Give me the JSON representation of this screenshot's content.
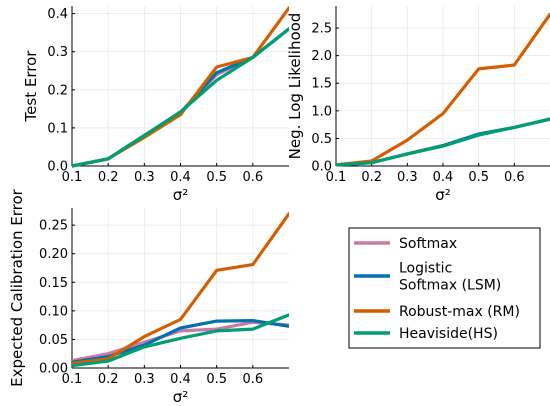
{
  "chart_data": [
    {
      "type": "line",
      "xlabel": "σ²",
      "ylabel": "Test Error",
      "xlim": [
        0.1,
        0.7
      ],
      "ylim": [
        0.0,
        0.42
      ],
      "xticks": [
        0.1,
        0.2,
        0.3,
        0.4,
        0.5,
        0.6
      ],
      "xtick_labels": [
        "0.1",
        "0.2",
        "0.3",
        "0.4",
        "0.5",
        "0.6"
      ],
      "yticks": [
        0.0,
        0.1,
        0.2,
        0.3,
        0.4
      ],
      "ytick_labels": [
        "0.0",
        "0.1",
        "0.2",
        "0.3",
        "0.4"
      ],
      "grid": true,
      "x": [
        0.1,
        0.2,
        0.3,
        0.4,
        0.5,
        0.6,
        0.7
      ],
      "series": [
        {
          "name": "Softmax",
          "color": "#CC79A7",
          "values": [
            0.0,
            0.019,
            0.08,
            0.14,
            0.24,
            0.285,
            0.36
          ]
        },
        {
          "name": "Logistic Softmax (LSM)",
          "color": "#0072B2",
          "values": [
            0.0,
            0.019,
            0.08,
            0.14,
            0.245,
            0.285,
            0.36
          ]
        },
        {
          "name": "Robust-max (RM)",
          "color": "#D55E00",
          "values": [
            0.0,
            0.019,
            0.075,
            0.135,
            0.26,
            0.285,
            0.415
          ]
        },
        {
          "name": "Heaviside(HS)",
          "color": "#009E73",
          "values": [
            0.0,
            0.019,
            0.08,
            0.142,
            0.225,
            0.285,
            0.36
          ]
        }
      ]
    },
    {
      "type": "line",
      "xlabel": "σ²",
      "ylabel": "Neg. Log Likelihood",
      "xlim": [
        0.1,
        0.7
      ],
      "ylim": [
        0.0,
        2.9
      ],
      "xticks": [
        0.1,
        0.2,
        0.3,
        0.4,
        0.5,
        0.6
      ],
      "xtick_labels": [
        "0.1",
        "0.2",
        "0.3",
        "0.4",
        "0.5",
        "0.6"
      ],
      "yticks": [
        0.0,
        0.5,
        1.0,
        1.5,
        2.0,
        2.5
      ],
      "ytick_labels": [
        "0.0",
        "0.5",
        "1.0",
        "1.5",
        "2.0",
        "2.5"
      ],
      "grid": true,
      "x": [
        0.1,
        0.2,
        0.3,
        0.4,
        0.5,
        0.6,
        0.7
      ],
      "series": [
        {
          "name": "Softmax",
          "color": "#CC79A7",
          "values": [
            0.02,
            0.06,
            0.22,
            0.37,
            0.57,
            0.7,
            0.85
          ]
        },
        {
          "name": "Logistic Softmax (LSM)",
          "color": "#0072B2",
          "values": [
            0.02,
            0.06,
            0.22,
            0.37,
            0.58,
            0.7,
            0.85
          ]
        },
        {
          "name": "Robust-max (RM)",
          "color": "#D55E00",
          "values": [
            0.02,
            0.09,
            0.47,
            0.95,
            1.76,
            1.83,
            2.75
          ]
        },
        {
          "name": "Heaviside(HS)",
          "color": "#009E73",
          "values": [
            0.02,
            0.06,
            0.22,
            0.36,
            0.56,
            0.7,
            0.85
          ]
        }
      ]
    },
    {
      "type": "line",
      "xlabel": "σ²",
      "ylabel": "Expected Calibration Error",
      "xlim": [
        0.1,
        0.7
      ],
      "ylim": [
        0.0,
        0.28
      ],
      "xticks": [
        0.1,
        0.2,
        0.3,
        0.4,
        0.5,
        0.6
      ],
      "xtick_labels": [
        "0.1",
        "0.2",
        "0.3",
        "0.4",
        "0.5",
        "0.6"
      ],
      "yticks": [
        0.0,
        0.05,
        0.1,
        0.15,
        0.2,
        0.25
      ],
      "ytick_labels": [
        "0.00",
        "0.05",
        "0.10",
        "0.15",
        "0.20",
        "0.25"
      ],
      "grid": true,
      "x": [
        0.1,
        0.2,
        0.3,
        0.4,
        0.5,
        0.6,
        0.7
      ],
      "series": [
        {
          "name": "Softmax",
          "color": "#CC79A7",
          "values": [
            0.013,
            0.025,
            0.045,
            0.065,
            0.068,
            0.08,
            0.075
          ]
        },
        {
          "name": "Logistic Softmax (LSM)",
          "color": "#0072B2",
          "values": [
            0.01,
            0.02,
            0.04,
            0.07,
            0.082,
            0.083,
            0.073
          ]
        },
        {
          "name": "Robust-max (RM)",
          "color": "#D55E00",
          "values": [
            0.008,
            0.016,
            0.055,
            0.085,
            0.171,
            0.181,
            0.27
          ]
        },
        {
          "name": "Heaviside(HS)",
          "color": "#009E73",
          "values": [
            0.004,
            0.012,
            0.037,
            0.052,
            0.065,
            0.068,
            0.093
          ]
        }
      ]
    }
  ],
  "legend": {
    "entries": [
      {
        "label_lines": [
          "Softmax"
        ],
        "color": "#CC79A7"
      },
      {
        "label_lines": [
          "Logistic",
          "Softmax (LSM)"
        ],
        "color": "#0072B2"
      },
      {
        "label_lines": [
          "Robust-max (RM)"
        ],
        "color": "#D55E00"
      },
      {
        "label_lines": [
          "Heaviside(HS)"
        ],
        "color": "#009E73"
      }
    ]
  }
}
